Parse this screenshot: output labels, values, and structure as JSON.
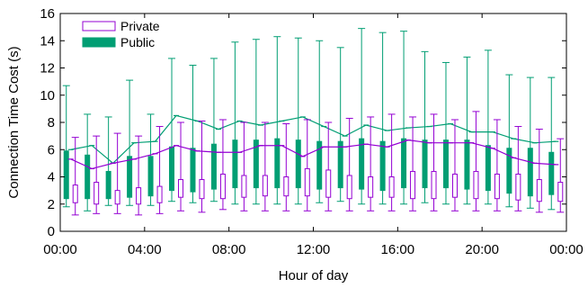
{
  "chart_data": {
    "type": "boxplot",
    "xlabel": "Hour of day",
    "ylabel": "Connection Time Cost (s)",
    "xlim": [
      0,
      24
    ],
    "ylim": [
      0,
      16
    ],
    "x_ticks": [
      0,
      4,
      8,
      12,
      16,
      20,
      24
    ],
    "x_tick_labels": [
      "00:00",
      "04:00",
      "08:00",
      "12:00",
      "16:00",
      "20:00",
      "00:00"
    ],
    "y_ticks": [
      0,
      2,
      4,
      6,
      8,
      10,
      12,
      14,
      16
    ],
    "y_tick_labels": [
      "0",
      "2",
      "4",
      "6",
      "8",
      "10",
      "12",
      "14",
      "16"
    ],
    "grid": false,
    "legend_position": "top-left",
    "hours": [
      0,
      1,
      2,
      3,
      4,
      5,
      6,
      7,
      8,
      9,
      10,
      11,
      12,
      13,
      14,
      15,
      16,
      17,
      18,
      19,
      20,
      21,
      22,
      23
    ],
    "series": [
      {
        "name": "Public",
        "color": "#009e73",
        "style": "filled",
        "whisker_low": [
          1.8,
          1.5,
          1.9,
          1.9,
          1.9,
          2.2,
          2.1,
          2.2,
          2.0,
          2.0,
          2.0,
          2.0,
          2.1,
          2.2,
          2.0,
          2.0,
          2.0,
          2.1,
          2.0,
          2.0,
          2.0,
          1.8,
          1.7,
          1.6
        ],
        "q1": [
          2.4,
          2.4,
          2.4,
          2.5,
          2.6,
          3.0,
          2.9,
          3.1,
          3.2,
          3.2,
          3.2,
          3.2,
          3.1,
          3.2,
          3.1,
          3.0,
          3.2,
          3.2,
          3.2,
          3.1,
          3.0,
          2.8,
          2.6,
          2.7
        ],
        "q3": [
          5.9,
          5.6,
          4.4,
          5.5,
          5.5,
          6.2,
          6.1,
          6.4,
          6.7,
          6.7,
          6.8,
          6.7,
          6.6,
          6.6,
          6.8,
          6.6,
          6.8,
          6.7,
          6.7,
          6.7,
          6.3,
          6.1,
          6.1,
          5.8
        ],
        "whisker_high": [
          10.7,
          8.6,
          8.4,
          11.1,
          8.6,
          12.7,
          12.2,
          12.7,
          13.9,
          14.1,
          14.3,
          14.2,
          14.0,
          13.5,
          14.9,
          14.6,
          14.7,
          13.2,
          12.4,
          12.8,
          13.3,
          11.5,
          11.3,
          11.3
        ],
        "mean": [
          6.0,
          6.3,
          5.0,
          6.5,
          6.6,
          8.5,
          8.1,
          7.5,
          8.1,
          7.8,
          8.1,
          8.4,
          7.7,
          7.0,
          7.8,
          7.4,
          7.6,
          7.7,
          7.9,
          7.3,
          7.3,
          6.8,
          6.5,
          6.6
        ]
      },
      {
        "name": "Private",
        "color": "#9400d3",
        "style": "hollow",
        "whisker_low": [
          1.2,
          1.3,
          1.3,
          1.2,
          1.3,
          1.5,
          1.4,
          1.6,
          1.5,
          1.5,
          1.5,
          1.5,
          1.5,
          1.5,
          1.5,
          1.5,
          1.5,
          1.5,
          1.5,
          1.5,
          1.5,
          1.5,
          1.4,
          1.4
        ],
        "q1": [
          2.1,
          2.0,
          2.0,
          2.0,
          2.1,
          2.5,
          2.4,
          2.4,
          2.5,
          2.6,
          2.6,
          2.6,
          2.5,
          2.4,
          2.5,
          2.5,
          2.4,
          2.4,
          2.5,
          2.4,
          2.4,
          2.3,
          2.2,
          2.2
        ],
        "q3": [
          3.4,
          3.6,
          3.0,
          3.2,
          3.3,
          3.8,
          3.8,
          4.2,
          4.1,
          4.1,
          4.0,
          4.6,
          4.5,
          4.1,
          4.0,
          4.0,
          4.4,
          4.4,
          4.2,
          4.4,
          4.2,
          4.2,
          3.8,
          3.6
        ],
        "whisker_high": [
          6.9,
          7.0,
          7.2,
          7.0,
          7.7,
          8.0,
          8.1,
          8.2,
          8.0,
          8.0,
          7.9,
          8.2,
          8.0,
          8.3,
          8.4,
          8.6,
          8.4,
          8.6,
          8.2,
          8.8,
          8.2,
          7.7,
          7.5,
          6.8
        ],
        "mean": [
          5.3,
          4.6,
          5.0,
          5.3,
          5.7,
          6.3,
          5.9,
          5.8,
          5.8,
          6.3,
          6.3,
          5.5,
          6.2,
          6.2,
          6.4,
          6.2,
          6.7,
          6.5,
          6.5,
          6.5,
          6.1,
          5.4,
          5.0,
          4.9
        ]
      }
    ]
  }
}
